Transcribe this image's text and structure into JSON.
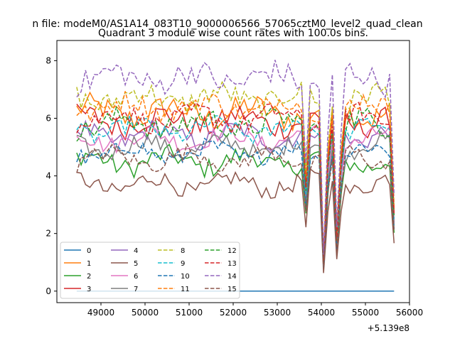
{
  "chart_data": {
    "type": "line",
    "suptitle": "n file: modeM0/AS1A14_083T10_9000006566_57065cztM0_level2_quad_clean",
    "title": "Quadrant 3 module wise count rates with 100.0s bins.",
    "xlabel": "",
    "ylabel": "",
    "x_offset_label": "+5.139e8",
    "xlim": [
      48000,
      56000
    ],
    "ylim": [
      -0.4,
      8.7
    ],
    "xticks": [
      49000,
      50000,
      51000,
      52000,
      53000,
      54000,
      55000,
      56000
    ],
    "yticks": [
      0,
      2,
      4,
      6,
      8
    ],
    "grid": false,
    "legend_position": "lower-left",
    "x_start": 48450,
    "x_step": 100,
    "n_points": 73,
    "dip_points": [
      {
        "x": 53650,
        "factor": 0.6
      },
      {
        "x": 54050,
        "factor": 0.17
      },
      {
        "x": 54350,
        "factor": 0.3
      },
      {
        "x": 55650,
        "factor": 0.45
      }
    ],
    "series": [
      {
        "name": "0",
        "color": "#1f77b4",
        "dash": "solid",
        "base": 0.0,
        "amp": 0.0
      },
      {
        "name": "1",
        "color": "#ff7f0e",
        "dash": "solid",
        "base": 6.2,
        "amp": 0.45
      },
      {
        "name": "2",
        "color": "#2ca02c",
        "dash": "solid",
        "base": 4.5,
        "amp": 0.35
      },
      {
        "name": "3",
        "color": "#d62728",
        "dash": "solid",
        "base": 5.9,
        "amp": 0.4
      },
      {
        "name": "4",
        "color": "#9467bd",
        "dash": "solid",
        "base": 5.4,
        "amp": 0.35
      },
      {
        "name": "5",
        "color": "#8c564b",
        "dash": "solid",
        "base": 3.7,
        "amp": 0.3
      },
      {
        "name": "6",
        "color": "#e377c2",
        "dash": "solid",
        "base": 5.3,
        "amp": 0.3
      },
      {
        "name": "7",
        "color": "#7f7f7f",
        "dash": "solid",
        "base": 5.0,
        "amp": 0.3
      },
      {
        "name": "8",
        "color": "#bcbd22",
        "dash": "dashed",
        "base": 6.7,
        "amp": 0.4
      },
      {
        "name": "9",
        "color": "#17becf",
        "dash": "dashed",
        "base": 5.6,
        "amp": 0.3
      },
      {
        "name": "10",
        "color": "#1f77b4",
        "dash": "dashed",
        "base": 4.8,
        "amp": 0.3
      },
      {
        "name": "11",
        "color": "#ff7f0e",
        "dash": "dashed",
        "base": 6.4,
        "amp": 0.35
      },
      {
        "name": "12",
        "color": "#2ca02c",
        "dash": "dashed",
        "base": 5.8,
        "amp": 0.4
      },
      {
        "name": "13",
        "color": "#d62728",
        "dash": "dashed",
        "base": 6.0,
        "amp": 0.35
      },
      {
        "name": "14",
        "color": "#9467bd",
        "dash": "dashed",
        "base": 7.4,
        "amp": 0.45
      },
      {
        "name": "15",
        "color": "#8c564b",
        "dash": "dashed",
        "base": 4.6,
        "amp": 0.3
      }
    ]
  }
}
